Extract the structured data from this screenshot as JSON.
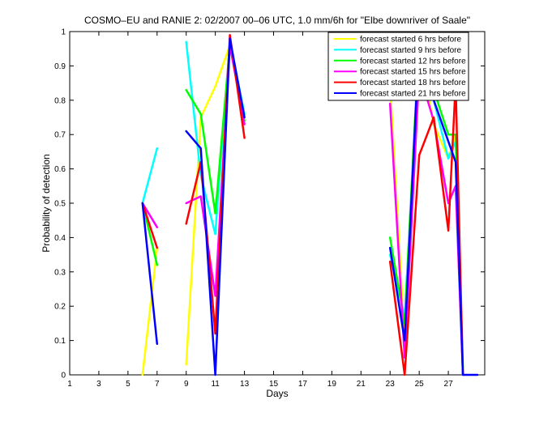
{
  "chart_data": {
    "type": "line",
    "title": "COSMO–EU and RANIE 2: 02/2007 00–06 UTC, 1.0 mm/6h for \"Elbe downriver of Saale\"",
    "xlabel": "Days",
    "ylabel": "Probability of detection",
    "xlim": [
      1,
      29.5
    ],
    "ylim": [
      0,
      1
    ],
    "xticks": [
      1,
      3,
      5,
      7,
      9,
      11,
      13,
      15,
      17,
      19,
      21,
      23,
      25,
      27
    ],
    "yticks": [
      0,
      0.1,
      0.2,
      0.3,
      0.4,
      0.5,
      0.6,
      0.7,
      0.8,
      0.9,
      1
    ],
    "ytick_labels": [
      "0",
      "0.1",
      "0.2",
      "0.3",
      "0.4",
      "0.5",
      "0.6",
      "0.7",
      "0.8",
      "0.9",
      "1"
    ],
    "grid": false,
    "legend_position": "top-right",
    "series": [
      {
        "name": "forecast started 6 hrs before",
        "color": "#ffff00",
        "segments": [
          [
            [
              6,
              0
            ],
            [
              7,
              0.37
            ]
          ],
          [
            [
              9,
              0.03
            ],
            [
              10,
              0.75
            ],
            [
              11,
              0.84
            ],
            [
              12,
              0.96
            ],
            [
              13,
              0.76
            ]
          ],
          [
            [
              23,
              0.85
            ],
            [
              24,
              0.1
            ],
            [
              25,
              0.95
            ],
            [
              26,
              0.73
            ],
            [
              27,
              0.63
            ],
            [
              27.5,
              0.7
            ],
            [
              28,
              0
            ]
          ]
        ]
      },
      {
        "name": "forecast started 9 hrs before",
        "color": "#00ffff",
        "segments": [
          [
            [
              6,
              0.5
            ],
            [
              7,
              0.66
            ]
          ],
          [
            [
              9,
              0.97
            ],
            [
              10,
              0.58
            ],
            [
              11,
              0.41
            ],
            [
              12,
              0.97
            ],
            [
              13,
              0.76
            ]
          ],
          [
            [
              23,
              0.35
            ],
            [
              24,
              0.17
            ],
            [
              25,
              0.93
            ],
            [
              26,
              0.8
            ],
            [
              27,
              0.63
            ],
            [
              27.5,
              0.68
            ],
            [
              28,
              0
            ]
          ]
        ]
      },
      {
        "name": "forecast started 12 hrs before",
        "color": "#00ff00",
        "segments": [
          [
            [
              6,
              0.5
            ],
            [
              7,
              0.32
            ]
          ],
          [
            [
              9,
              0.83
            ],
            [
              10,
              0.76
            ],
            [
              11,
              0.47
            ],
            [
              12,
              0.96
            ],
            [
              13,
              0.74
            ]
          ],
          [
            [
              23,
              0.4
            ],
            [
              24,
              0.15
            ],
            [
              25,
              0.99
            ],
            [
              26,
              0.83
            ],
            [
              27,
              0.7
            ],
            [
              27.5,
              0.7
            ],
            [
              28,
              0.02
            ]
          ]
        ]
      },
      {
        "name": "forecast started 15 hrs before",
        "color": "#ff00ff",
        "segments": [
          [
            [
              6,
              0.5
            ],
            [
              7,
              0.43
            ]
          ],
          [
            [
              9,
              0.5
            ],
            [
              10,
              0.52
            ],
            [
              11,
              0.23
            ],
            [
              12,
              0.96
            ],
            [
              13,
              0.73
            ]
          ],
          [
            [
              23,
              0.79
            ],
            [
              24,
              0.05
            ],
            [
              25,
              0.88
            ],
            [
              26,
              0.74
            ],
            [
              27,
              0.5
            ],
            [
              27.5,
              0.55
            ],
            [
              28,
              0
            ]
          ]
        ]
      },
      {
        "name": "forecast started 18 hrs before",
        "color": "#ff0000",
        "segments": [
          [
            [
              6,
              0.5
            ],
            [
              7,
              0.37
            ]
          ],
          [
            [
              9,
              0.44
            ],
            [
              10,
              0.62
            ],
            [
              11,
              0.12
            ],
            [
              12,
              0.99
            ],
            [
              13,
              0.69
            ]
          ],
          [
            [
              23,
              0.33
            ],
            [
              24,
              0.0
            ],
            [
              25,
              0.64
            ],
            [
              26,
              0.75
            ],
            [
              27,
              0.42
            ],
            [
              27.5,
              0.85
            ],
            [
              28,
              0
            ]
          ]
        ]
      },
      {
        "name": "forecast started 21 hrs before",
        "color": "#0000ff",
        "segments": [
          [
            [
              6,
              0.5
            ],
            [
              7,
              0.09
            ]
          ],
          [
            [
              9,
              0.71
            ],
            [
              10,
              0.66
            ],
            [
              11,
              0.0
            ],
            [
              12,
              0.98
            ],
            [
              13,
              0.75
            ]
          ],
          [
            [
              23,
              0.37
            ],
            [
              24,
              0.1
            ],
            [
              25,
              0.98
            ],
            [
              26,
              0.8
            ],
            [
              27,
              0.68
            ],
            [
              27.5,
              0.62
            ],
            [
              28,
              0
            ],
            [
              29,
              0
            ]
          ]
        ]
      }
    ]
  }
}
